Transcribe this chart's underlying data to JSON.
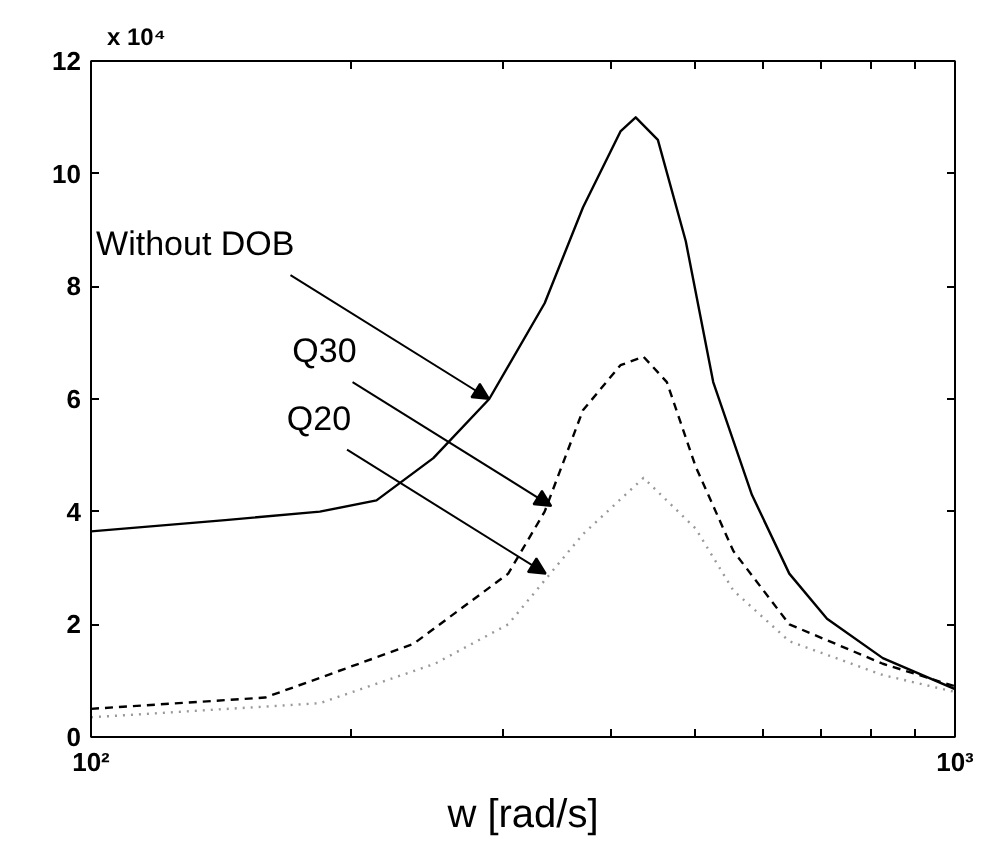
{
  "chart_data": {
    "type": "line",
    "log": "x",
    "xlabel": "w [rad/s]",
    "xlim": [
      100,
      1000
    ],
    "xticks": [
      {
        "value": 100,
        "label": "10²"
      },
      {
        "value": 200,
        "label": null
      },
      {
        "value": 300,
        "label": null
      },
      {
        "value": 400,
        "label": null
      },
      {
        "value": 500,
        "label": null
      },
      {
        "value": 600,
        "label": null
      },
      {
        "value": 700,
        "label": null
      },
      {
        "value": 800,
        "label": null
      },
      {
        "value": 900,
        "label": null
      },
      {
        "value": 1000,
        "label": "10³"
      }
    ],
    "ylim": [
      0,
      12
    ],
    "yticks": [
      0,
      2,
      4,
      6,
      8,
      10,
      12
    ],
    "grid": false,
    "series": [
      {
        "color": "#000000",
        "line_style": "solid",
        "x": [
          100,
          143,
          184,
          214,
          249,
          289,
          335,
          371,
          410,
          427,
          453,
          488,
          525,
          582,
          643,
          711,
          825,
          1000
        ],
        "values": [
          3.65,
          3.85,
          4.0,
          4.2,
          4.95,
          6.0,
          7.7,
          9.4,
          10.75,
          11.0,
          10.6,
          8.8,
          6.3,
          4.3,
          2.9,
          2.1,
          1.4,
          0.85
        ]
      },
      {
        "color": "#000000",
        "line_style": "dashed",
        "x": [
          100,
          159,
          184,
          236,
          304,
          335,
          371,
          410,
          436,
          464,
          501,
          554,
          643,
          825,
          1000
        ],
        "values": [
          0.5,
          0.7,
          1.05,
          1.65,
          2.9,
          4.0,
          5.8,
          6.6,
          6.75,
          6.3,
          4.8,
          3.3,
          2.0,
          1.3,
          0.9
        ]
      },
      {
        "color": "#999999",
        "line_style": "dotted",
        "x": [
          100,
          184,
          250,
          304,
          371,
          436,
          501,
          554,
          643,
          825,
          1000
        ],
        "values": [
          0.35,
          0.6,
          1.3,
          2.0,
          3.6,
          4.6,
          3.7,
          2.6,
          1.7,
          1.1,
          0.8
        ]
      }
    ],
    "annotations": [
      "x 10⁴",
      {
        "text": "Without DOB",
        "x": 289,
        "y": 6.0
      },
      {
        "text": "Q30",
        "x": 341,
        "y": 4.1
      },
      {
        "text": "Q20",
        "x": 336,
        "y": 2.9
      }
    ]
  }
}
